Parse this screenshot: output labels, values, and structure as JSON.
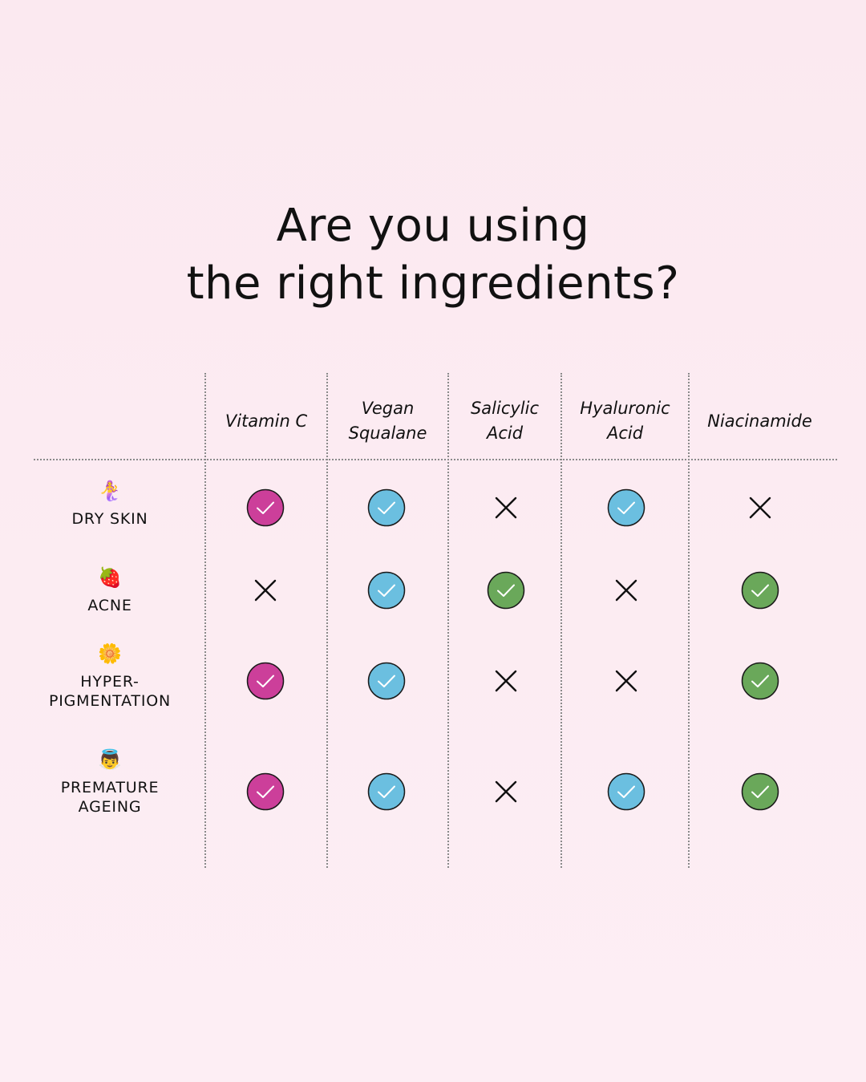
{
  "title": {
    "line1": "Are you using",
    "line2": "the right ingredients?"
  },
  "columns": [
    {
      "label": "Vitamin C",
      "color": "#cc3f9a"
    },
    {
      "label": "Vegan\nSqualane",
      "color": "#6bbfe0"
    },
    {
      "label": "Salicylic\nAcid",
      "color": "#6aa85a"
    },
    {
      "label": "Hyaluronic\nAcid",
      "color": "#6bbfe0"
    },
    {
      "label": "Niacinamide",
      "color": "#6aa85a"
    }
  ],
  "rows": [
    {
      "label": "DRY SKIN",
      "icon": "mermaid-icon",
      "emoji": "🧜‍♀️",
      "values": [
        true,
        true,
        false,
        true,
        false
      ]
    },
    {
      "label": "ACNE",
      "icon": "strawberry-icon",
      "emoji": "🍓",
      "values": [
        false,
        true,
        true,
        false,
        true
      ]
    },
    {
      "label": "HYPER-\nPIGMENTATION",
      "icon": "flower-icon",
      "emoji": "🌼",
      "values": [
        true,
        true,
        false,
        false,
        true
      ]
    },
    {
      "label": "PREMATURE\nAGEING",
      "icon": "baby-angel-icon",
      "emoji": "👼",
      "values": [
        true,
        true,
        false,
        true,
        true
      ]
    }
  ]
}
